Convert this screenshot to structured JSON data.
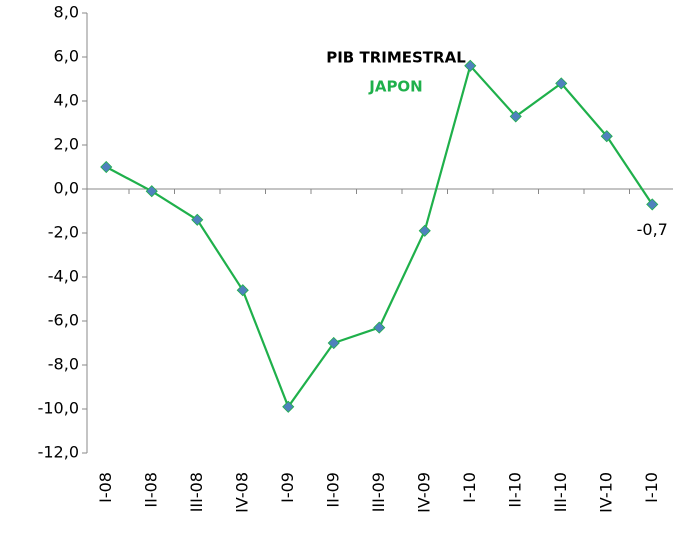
{
  "chart_data": {
    "type": "line",
    "title": "PIB TRIMESTRAL",
    "subtitle": "JAPON",
    "categories": [
      "I-08",
      "II-08",
      "III-08",
      "IV-08",
      "I-09",
      "II-09",
      "III-09",
      "IV-09",
      "I-10",
      "II-10",
      "III-10",
      "IV-10",
      "I-10"
    ],
    "series": [
      {
        "name": "JAPON",
        "color": "#1fb04b",
        "marker_color": "#4f81bd",
        "values": [
          1.0,
          -0.1,
          -1.4,
          -4.6,
          -9.9,
          -7.0,
          -6.3,
          -1.9,
          5.6,
          3.3,
          4.8,
          2.4,
          -0.7
        ],
        "value_labels": [
          null,
          null,
          null,
          null,
          null,
          null,
          null,
          null,
          null,
          null,
          null,
          null,
          "-0,7"
        ]
      }
    ],
    "ylim": [
      -12,
      8
    ],
    "yticks": [
      {
        "value": -12,
        "label": "-12,0"
      },
      {
        "value": -10,
        "label": "-10,0"
      },
      {
        "value": -8,
        "label": "-8,0"
      },
      {
        "value": -6,
        "label": "-6,0"
      },
      {
        "value": -4,
        "label": "-4,0"
      },
      {
        "value": -2,
        "label": "-2,0"
      },
      {
        "value": 0,
        "label": "0,0"
      },
      {
        "value": 2,
        "label": "2,0"
      },
      {
        "value": 4,
        "label": "4,0"
      },
      {
        "value": 6,
        "label": "6,0"
      },
      {
        "value": 8,
        "label": "8,0"
      }
    ],
    "grid": false
  }
}
